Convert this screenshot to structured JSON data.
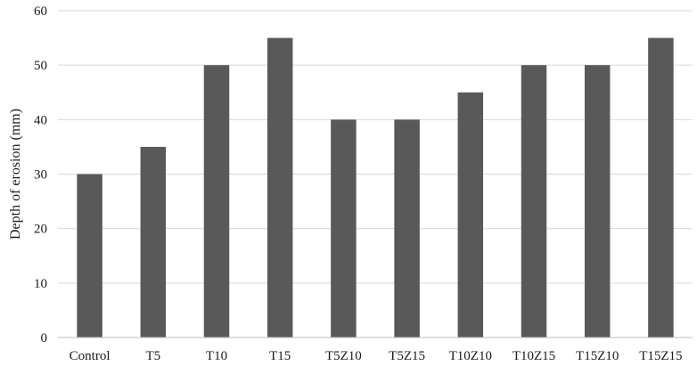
{
  "chart_data": {
    "type": "bar",
    "title": "",
    "xlabel": "",
    "ylabel": "Depth of erosion (mm)",
    "ylim": [
      0,
      60
    ],
    "yticks": [
      0,
      10,
      20,
      30,
      40,
      50,
      60
    ],
    "grid": true,
    "legend": "none",
    "bar_color": "#595959",
    "categories": [
      "Control",
      "T5",
      "T10",
      "T15",
      "T5Z10",
      "T5Z15",
      "T10Z10",
      "T10Z15",
      "T15Z10",
      "T15Z15"
    ],
    "values": [
      30,
      35,
      50,
      55,
      40,
      40,
      45,
      50,
      50,
      55
    ]
  }
}
